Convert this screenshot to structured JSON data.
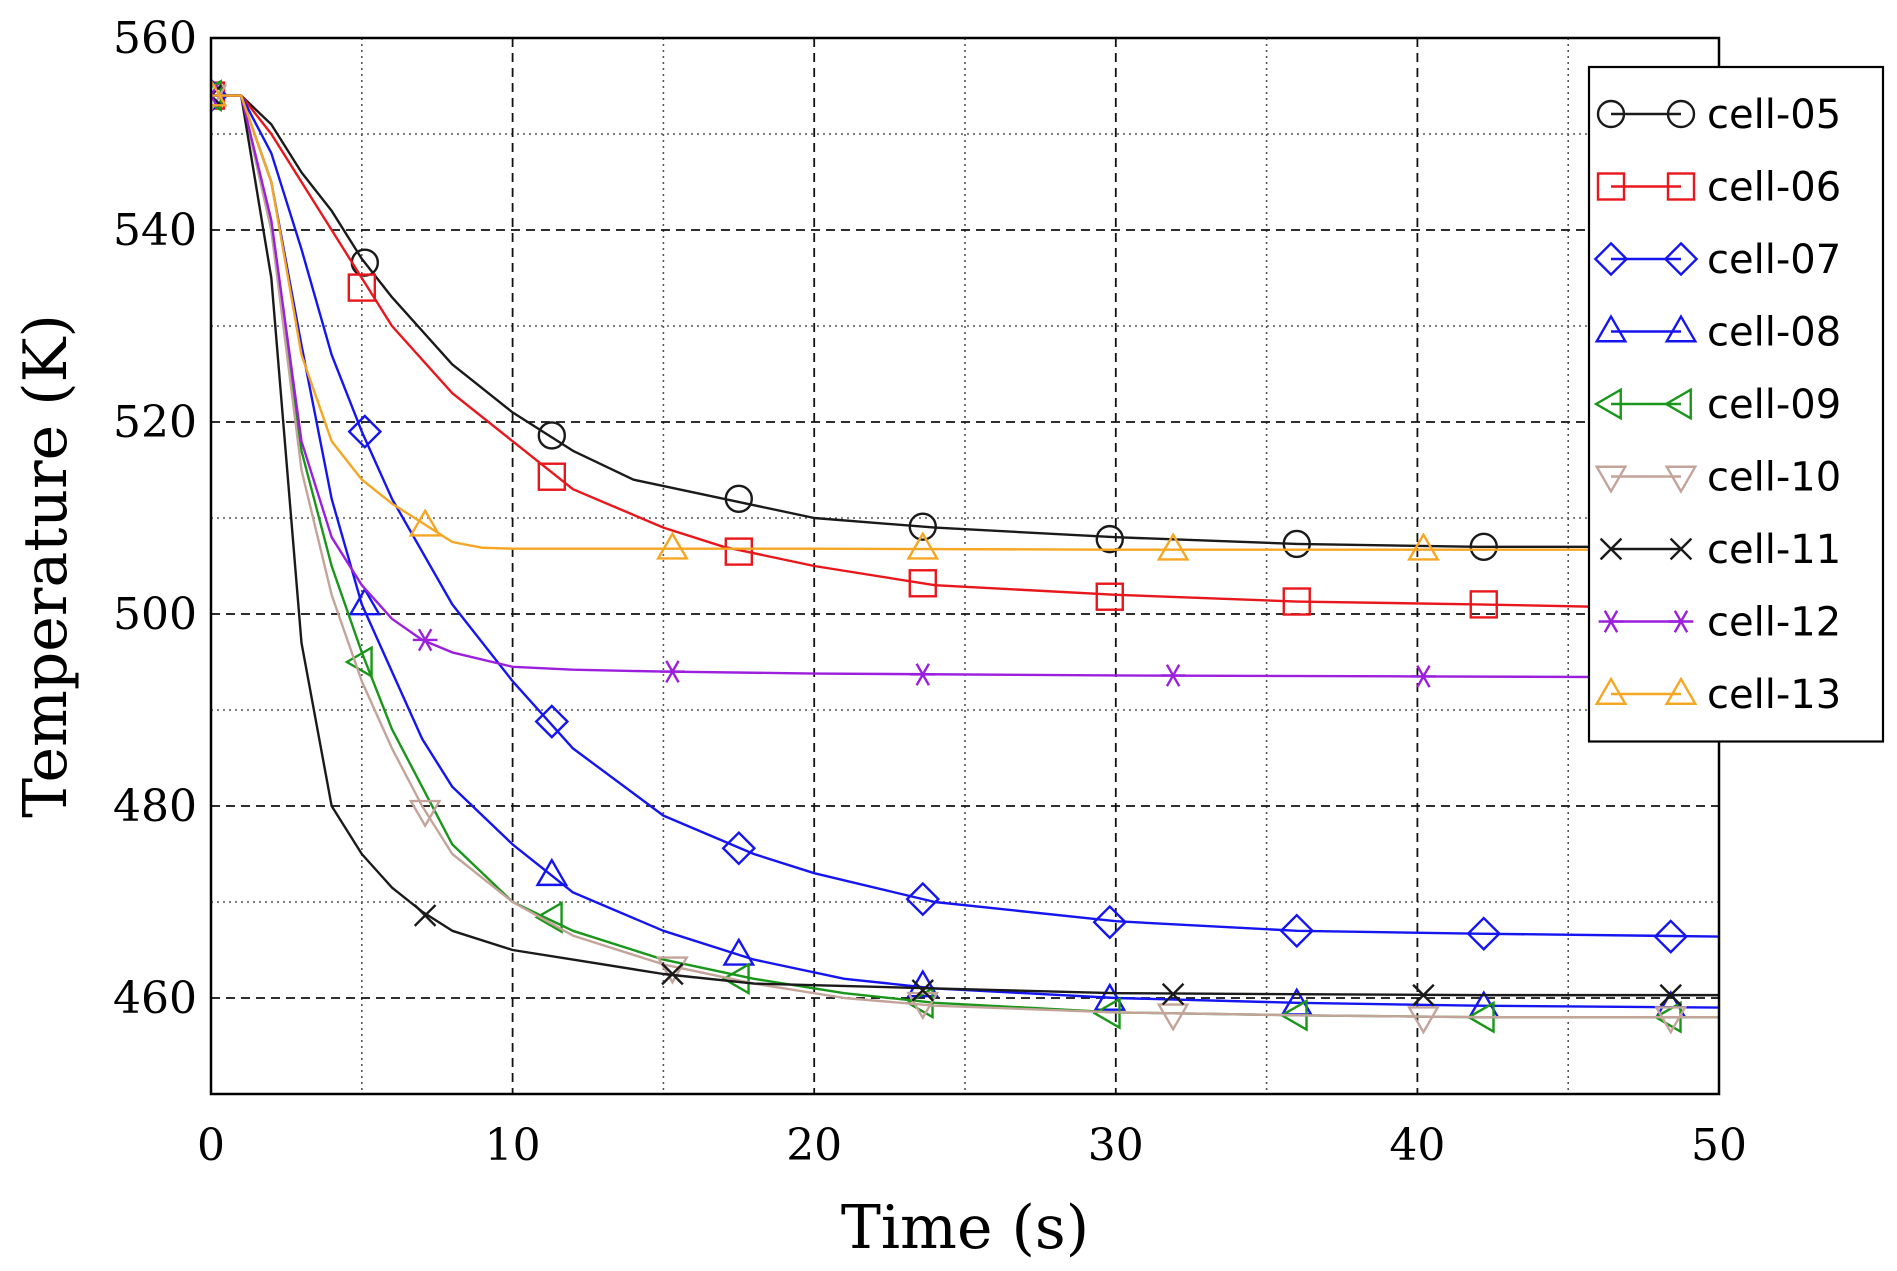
{
  "chart_data": {
    "type": "line",
    "title": "",
    "xlabel": "Time (s)",
    "ylabel": "Temperature (K)",
    "xlim": [
      0,
      50
    ],
    "ylim": [
      450,
      560
    ],
    "xticks": [
      0,
      10,
      20,
      30,
      40,
      50
    ],
    "yticks": [
      460,
      480,
      500,
      520,
      540,
      560
    ],
    "x_minor_grid": [
      5,
      15,
      25,
      35,
      45
    ],
    "y_minor_grid": [
      470,
      490,
      510,
      530,
      550
    ],
    "grid": true,
    "legend_position": "top-right",
    "series": [
      {
        "name": "cell-05",
        "color": "#1a1a1a",
        "marker": "circle",
        "line": [
          [
            0,
            554
          ],
          [
            1,
            554
          ],
          [
            2,
            551
          ],
          [
            3,
            546
          ],
          [
            4,
            542
          ],
          [
            5,
            537
          ],
          [
            6,
            533
          ],
          [
            8,
            526
          ],
          [
            10,
            521
          ],
          [
            12,
            517
          ],
          [
            14,
            514
          ],
          [
            17,
            512
          ],
          [
            20,
            510
          ],
          [
            24,
            509
          ],
          [
            30,
            508
          ],
          [
            36,
            507.3
          ],
          [
            42,
            507
          ],
          [
            50,
            507
          ]
        ],
        "markers": [
          [
            0,
            554
          ],
          [
            5.1,
            536.6
          ],
          [
            11.3,
            518.6
          ],
          [
            17.5,
            512
          ],
          [
            23.6,
            509.1
          ],
          [
            29.8,
            507.8
          ],
          [
            36,
            507.3
          ],
          [
            42.2,
            507
          ]
        ]
      },
      {
        "name": "cell-06",
        "color": "#e8171c",
        "marker": "square",
        "line": [
          [
            0,
            554
          ],
          [
            1,
            554
          ],
          [
            2,
            550
          ],
          [
            3,
            545
          ],
          [
            4,
            540
          ],
          [
            5,
            535
          ],
          [
            6,
            530
          ],
          [
            8,
            523
          ],
          [
            10,
            518
          ],
          [
            12,
            513
          ],
          [
            15,
            509
          ],
          [
            17,
            507
          ],
          [
            20,
            505
          ],
          [
            24,
            503
          ],
          [
            30,
            502
          ],
          [
            36,
            501.3
          ],
          [
            42,
            501
          ],
          [
            50,
            500.5
          ]
        ],
        "markers": [
          [
            0,
            554
          ],
          [
            5,
            534
          ],
          [
            11.3,
            514.3
          ],
          [
            17.5,
            506.5
          ],
          [
            23.6,
            503.2
          ],
          [
            29.8,
            501.8
          ],
          [
            36,
            501.3
          ],
          [
            42.2,
            501
          ]
        ]
      },
      {
        "name": "cell-07",
        "color": "#1515f0",
        "marker": "diamond",
        "line": [
          [
            0,
            554
          ],
          [
            1,
            554
          ],
          [
            2,
            548
          ],
          [
            3,
            538
          ],
          [
            4,
            527
          ],
          [
            5,
            519
          ],
          [
            6,
            512
          ],
          [
            8,
            501
          ],
          [
            10,
            493
          ],
          [
            12,
            486
          ],
          [
            15,
            479
          ],
          [
            18,
            475
          ],
          [
            20,
            473
          ],
          [
            24,
            470
          ],
          [
            30,
            468
          ],
          [
            36,
            467
          ],
          [
            42,
            466.7
          ],
          [
            50,
            466.4
          ]
        ],
        "markers": [
          [
            0,
            554
          ],
          [
            5.1,
            519
          ],
          [
            11.3,
            488.8
          ],
          [
            17.5,
            475.6
          ],
          [
            23.6,
            470.3
          ],
          [
            29.8,
            467.9
          ],
          [
            36,
            467
          ],
          [
            42.2,
            466.7
          ],
          [
            48.4,
            466.4
          ]
        ]
      },
      {
        "name": "cell-08",
        "color": "#1515f0",
        "marker": "triangle-up",
        "line": [
          [
            0,
            554
          ],
          [
            1,
            554
          ],
          [
            2,
            545
          ],
          [
            3,
            528
          ],
          [
            4,
            512
          ],
          [
            5,
            501
          ],
          [
            6,
            494
          ],
          [
            7,
            487
          ],
          [
            8,
            482
          ],
          [
            10,
            476
          ],
          [
            12,
            471
          ],
          [
            15,
            467
          ],
          [
            18,
            464
          ],
          [
            21,
            462
          ],
          [
            24,
            461
          ],
          [
            30,
            460
          ],
          [
            36,
            459.5
          ],
          [
            42,
            459.2
          ],
          [
            50,
            459
          ]
        ],
        "markers": [
          [
            0,
            554
          ],
          [
            5.1,
            501
          ],
          [
            11.3,
            472.8
          ],
          [
            17.5,
            464.5
          ],
          [
            23.6,
            461.2
          ],
          [
            29.8,
            459.8
          ],
          [
            36,
            459.3
          ],
          [
            42.2,
            459
          ],
          [
            48.4,
            459
          ]
        ]
      },
      {
        "name": "cell-09",
        "color": "#1a961a",
        "marker": "triangle-left",
        "line": [
          [
            0,
            554
          ],
          [
            1,
            554
          ],
          [
            2,
            540
          ],
          [
            3,
            517
          ],
          [
            4,
            505
          ],
          [
            5,
            496
          ],
          [
            6,
            488
          ],
          [
            7,
            482
          ],
          [
            8,
            476
          ],
          [
            10,
            470
          ],
          [
            12,
            467
          ],
          [
            15,
            464
          ],
          [
            18,
            462
          ],
          [
            21,
            460.5
          ],
          [
            24,
            459.5
          ],
          [
            30,
            458.5
          ],
          [
            36,
            458.2
          ],
          [
            42,
            458
          ],
          [
            50,
            458
          ]
        ],
        "markers": [
          [
            0,
            554
          ],
          [
            5,
            495
          ],
          [
            11.3,
            468.4
          ],
          [
            17.5,
            462
          ],
          [
            23.6,
            459.5
          ],
          [
            29.8,
            458.4
          ],
          [
            36,
            458.2
          ],
          [
            42.2,
            458
          ],
          [
            48.4,
            458
          ]
        ]
      },
      {
        "name": "cell-10",
        "color": "#c4a49a",
        "marker": "triangle-down",
        "line": [
          [
            0,
            554
          ],
          [
            1,
            554
          ],
          [
            2,
            540
          ],
          [
            3,
            515
          ],
          [
            4,
            502
          ],
          [
            5,
            493
          ],
          [
            6,
            486
          ],
          [
            7,
            480
          ],
          [
            8,
            475
          ],
          [
            10,
            470
          ],
          [
            12,
            466.5
          ],
          [
            15,
            463.5
          ],
          [
            18,
            461.5
          ],
          [
            21,
            460
          ],
          [
            24,
            459.2
          ],
          [
            30,
            458.5
          ],
          [
            36,
            458.2
          ],
          [
            42,
            458
          ],
          [
            50,
            458
          ]
        ],
        "markers": [
          [
            0,
            554
          ],
          [
            7.1,
            479.5
          ],
          [
            15.3,
            463.2
          ],
          [
            23.6,
            459.5
          ],
          [
            31.9,
            458.3
          ],
          [
            40.2,
            458
          ],
          [
            48.4,
            458
          ]
        ]
      },
      {
        "name": "cell-11",
        "color": "#1a1a1a",
        "marker": "cross",
        "line": [
          [
            0,
            554
          ],
          [
            1,
            554
          ],
          [
            2,
            535
          ],
          [
            3,
            497
          ],
          [
            4,
            480
          ],
          [
            5,
            475
          ],
          [
            6,
            471.5
          ],
          [
            7,
            469
          ],
          [
            8,
            467
          ],
          [
            10,
            465
          ],
          [
            12,
            464
          ],
          [
            15,
            462.5
          ],
          [
            18,
            461.5
          ],
          [
            24,
            461
          ],
          [
            30,
            460.5
          ],
          [
            36,
            460.4
          ],
          [
            42,
            460.3
          ],
          [
            50,
            460.3
          ]
        ],
        "markers": [
          [
            0,
            554
          ],
          [
            7.1,
            468.6
          ],
          [
            15.3,
            462.5
          ],
          [
            23.6,
            460.8
          ],
          [
            31.9,
            460.4
          ],
          [
            40.2,
            460.3
          ],
          [
            48.4,
            460.3
          ]
        ]
      },
      {
        "name": "cell-12",
        "color": "#9b1fdc",
        "marker": "asterisk",
        "line": [
          [
            0,
            554
          ],
          [
            1,
            554
          ],
          [
            2,
            541
          ],
          [
            3,
            518
          ],
          [
            4,
            508
          ],
          [
            5,
            503
          ],
          [
            6,
            499.5
          ],
          [
            7,
            497.3
          ],
          [
            8,
            496
          ],
          [
            10,
            494.5
          ],
          [
            12,
            494.2
          ],
          [
            15,
            494
          ],
          [
            20,
            493.8
          ],
          [
            30,
            493.6
          ],
          [
            40,
            493.5
          ],
          [
            50,
            493.4
          ]
        ],
        "markers": [
          [
            0,
            554
          ],
          [
            7.1,
            497.3
          ],
          [
            15.3,
            494
          ],
          [
            23.6,
            493.7
          ],
          [
            31.9,
            493.6
          ],
          [
            40.2,
            493.5
          ]
        ]
      },
      {
        "name": "cell-13",
        "color": "#f5a623",
        "marker": "triangle-up",
        "line": [
          [
            0,
            554
          ],
          [
            1,
            554
          ],
          [
            2,
            545
          ],
          [
            3,
            527
          ],
          [
            4,
            518
          ],
          [
            5,
            514
          ],
          [
            6,
            511.5
          ],
          [
            7,
            509.5
          ],
          [
            8,
            507.5
          ],
          [
            9,
            506.9
          ],
          [
            10,
            506.8
          ],
          [
            20,
            506.8
          ],
          [
            30,
            506.7
          ],
          [
            40,
            506.7
          ],
          [
            50,
            506.7
          ]
        ],
        "markers": [
          [
            0,
            554
          ],
          [
            7.1,
            509.2
          ],
          [
            15.3,
            506.8
          ],
          [
            23.6,
            506.8
          ],
          [
            31.9,
            506.7
          ],
          [
            40.2,
            506.7
          ]
        ]
      }
    ]
  }
}
